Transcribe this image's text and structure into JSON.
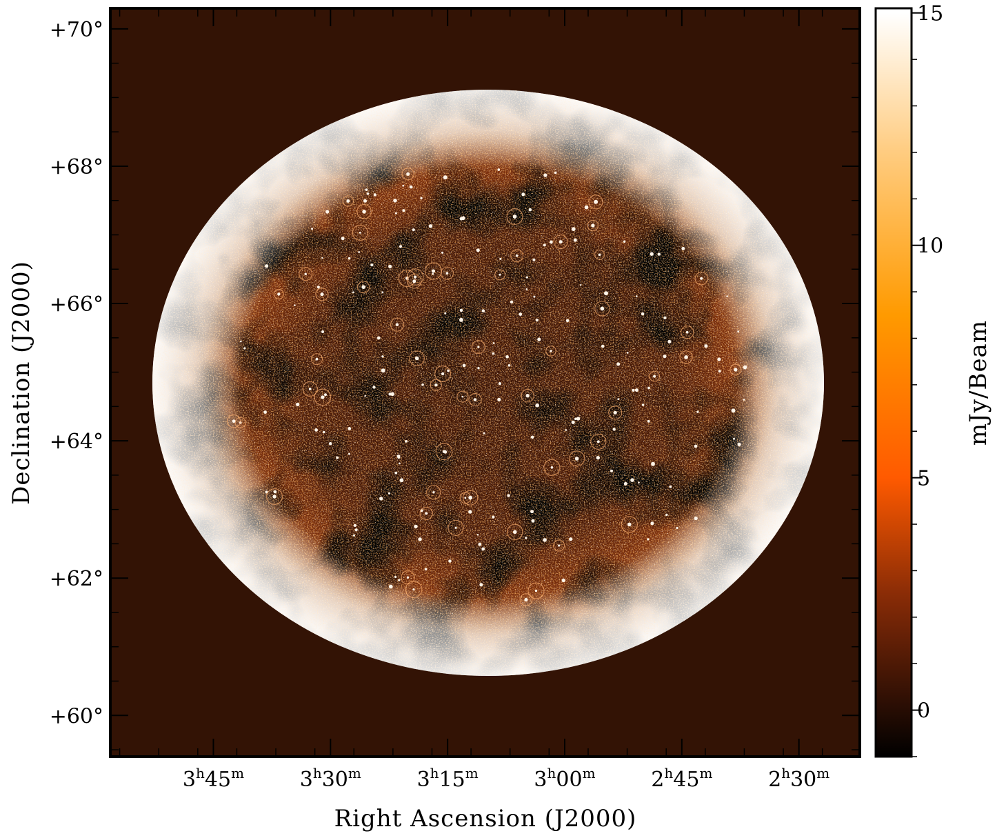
{
  "chart_data": {
    "type": "heatmap",
    "title": "",
    "xlabel": "Right Ascension (J2000)",
    "ylabel": "Declination (J2000)",
    "x_ticks": [
      {
        "h": "3",
        "m": "45",
        "ra_hours": 3.75
      },
      {
        "h": "3",
        "m": "30",
        "ra_hours": 3.5
      },
      {
        "h": "3",
        "m": "15",
        "ra_hours": 3.25
      },
      {
        "h": "3",
        "m": "00",
        "ra_hours": 3.0
      },
      {
        "h": "2",
        "m": "45",
        "ra_hours": 2.75
      },
      {
        "h": "2",
        "m": "30",
        "ra_hours": 2.5
      }
    ],
    "y_ticks": [
      {
        "label": "+70°",
        "dec_deg": 70
      },
      {
        "label": "+68°",
        "dec_deg": 68
      },
      {
        "label": "+66°",
        "dec_deg": 66
      },
      {
        "label": "+64°",
        "dec_deg": 64
      },
      {
        "label": "+62°",
        "dec_deg": 62
      },
      {
        "label": "+60°",
        "dec_deg": 60
      }
    ],
    "ylim": [
      59.4,
      70.3
    ],
    "field_center": {
      "ra_hours": 3.1,
      "dec_deg": 64.9
    },
    "colorbar": {
      "label": "mJy/Beam",
      "range": [
        -1,
        15.1
      ],
      "ticks": [
        {
          "label": "15",
          "value": 15
        },
        {
          "label": "10",
          "value": 10
        },
        {
          "label": "5",
          "value": 5
        },
        {
          "label": "0",
          "value": 0
        }
      ],
      "colormap": [
        {
          "value": -1,
          "color": "#000000"
        },
        {
          "value": 0.5,
          "color": "#3a1305"
        },
        {
          "value": 2.5,
          "color": "#8a2c06"
        },
        {
          "value": 5,
          "color": "#ff5a00"
        },
        {
          "value": 8.5,
          "color": "#ff9a00"
        },
        {
          "value": 12,
          "color": "#ffcc80"
        },
        {
          "value": 15,
          "color": "#ffffff"
        }
      ]
    },
    "colors": {
      "background": "#331305",
      "frame": "#000000"
    }
  }
}
